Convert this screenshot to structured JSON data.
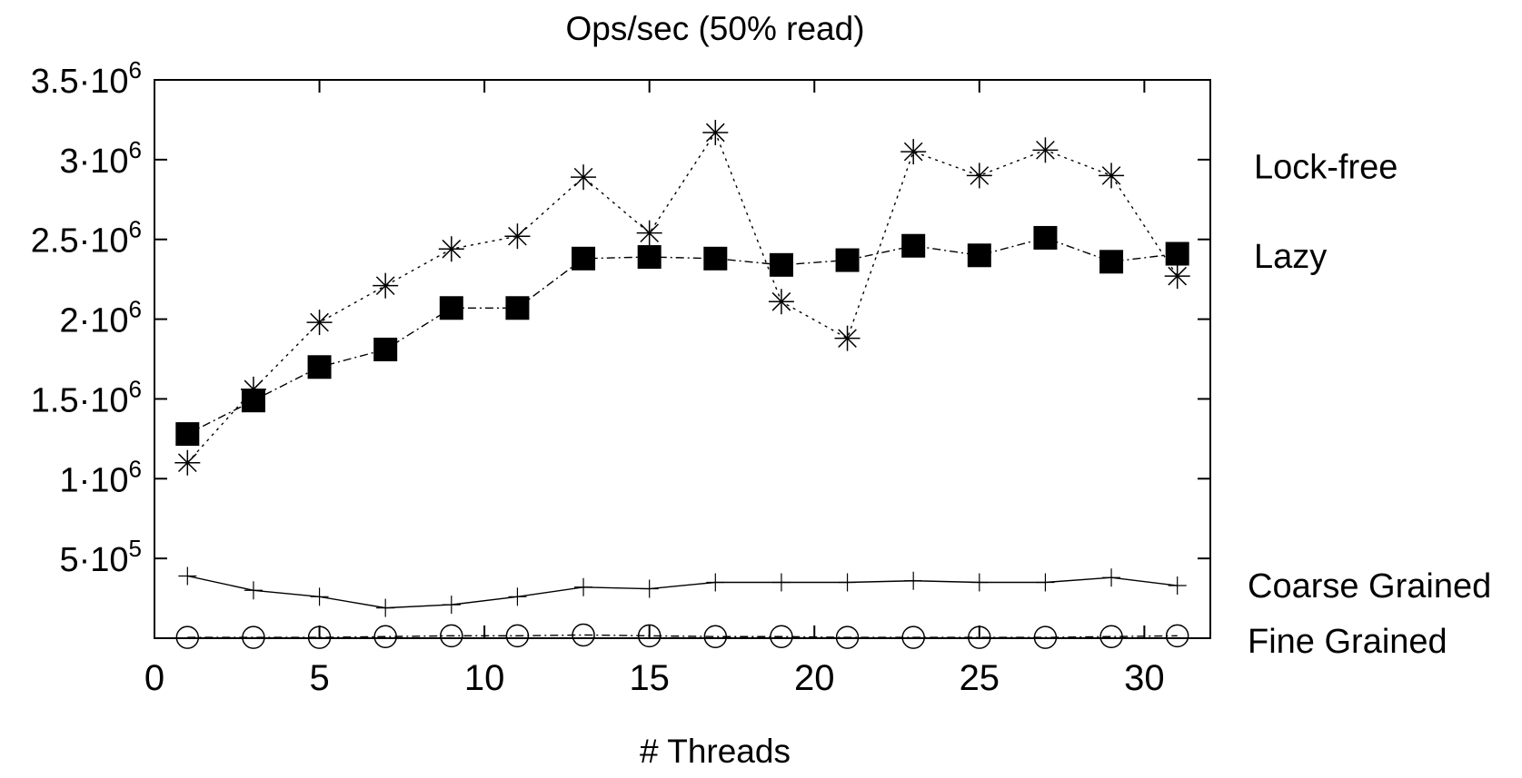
{
  "chart_data": {
    "type": "line",
    "title": "Ops/sec (50% read)",
    "xlabel": "# Threads",
    "ylabel": "",
    "xlim": [
      0,
      32
    ],
    "ylim": [
      0,
      3500000
    ],
    "xticks": [
      0,
      5,
      10,
      15,
      20,
      25,
      30
    ],
    "yticks": [
      {
        "value": 500000,
        "mant": "5·10",
        "exp": "5"
      },
      {
        "value": 1000000,
        "mant": "1·10",
        "exp": "6"
      },
      {
        "value": 1500000,
        "mant": "1.5·10",
        "exp": "6"
      },
      {
        "value": 2000000,
        "mant": "2·10",
        "exp": "6"
      },
      {
        "value": 2500000,
        "mant": "2.5·10",
        "exp": "6"
      },
      {
        "value": 3000000,
        "mant": "3·10",
        "exp": "6"
      },
      {
        "value": 3500000,
        "mant": "3.5·10",
        "exp": "6"
      }
    ],
    "legend_placement": "right, outside plot",
    "grid": false,
    "series": [
      {
        "name": "Lock-free",
        "marker": "asterisk",
        "line": "dotted",
        "x": [
          1,
          3,
          5,
          7,
          9,
          11,
          13,
          15,
          17,
          19,
          21,
          23,
          25,
          27,
          29,
          31
        ],
        "values": [
          1100000,
          1560000,
          1980000,
          2210000,
          2440000,
          2520000,
          2890000,
          2540000,
          3170000,
          2110000,
          1880000,
          3050000,
          2900000,
          3060000,
          2900000,
          2270000
        ]
      },
      {
        "name": "Lazy",
        "marker": "filled-square",
        "line": "dash-dot",
        "x": [
          1,
          3,
          5,
          7,
          9,
          11,
          13,
          15,
          17,
          19,
          21,
          23,
          25,
          27,
          29,
          31
        ],
        "values": [
          1280000,
          1490000,
          1700000,
          1810000,
          2070000,
          2070000,
          2380000,
          2390000,
          2380000,
          2340000,
          2370000,
          2460000,
          2400000,
          2510000,
          2360000,
          2410000
        ]
      },
      {
        "name": "Coarse Grained",
        "marker": "plus",
        "line": "solid",
        "x": [
          1,
          3,
          5,
          7,
          9,
          11,
          13,
          15,
          17,
          19,
          21,
          23,
          25,
          27,
          29,
          31
        ],
        "values": [
          390000,
          300000,
          260000,
          190000,
          210000,
          260000,
          320000,
          310000,
          350000,
          350000,
          350000,
          360000,
          350000,
          350000,
          380000,
          330000
        ]
      },
      {
        "name": "Fine Grained",
        "marker": "open-circle",
        "line": "dash-dot",
        "x": [
          1,
          3,
          5,
          7,
          9,
          11,
          13,
          15,
          17,
          19,
          21,
          23,
          25,
          27,
          29,
          31
        ],
        "values": [
          5000,
          5000,
          5000,
          10000,
          15000,
          15000,
          20000,
          15000,
          10000,
          10000,
          5000,
          5000,
          5000,
          5000,
          10000,
          15000
        ]
      }
    ]
  }
}
